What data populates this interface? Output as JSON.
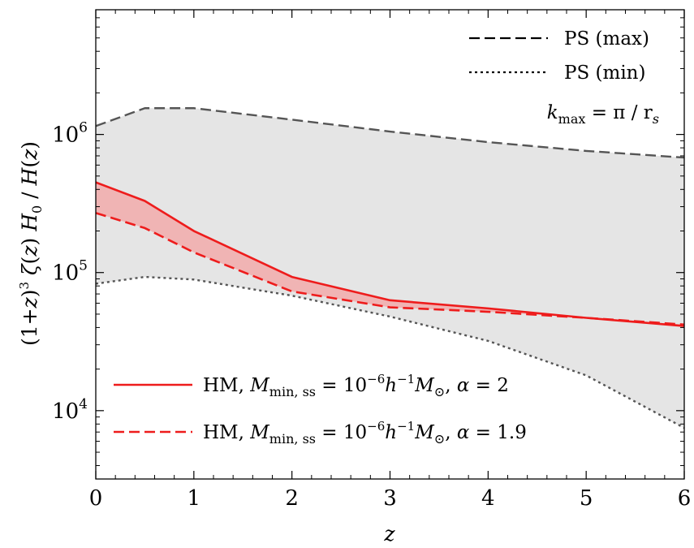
{
  "chart_data": {
    "type": "line",
    "xlabel": "z",
    "ylabel": "(1+z)^3 ζ(z) H_0 / H(z)",
    "xlim": [
      0,
      6
    ],
    "ylim": [
      3200,
      8000000
    ],
    "yscale": "log",
    "x_ticks": [
      "0",
      "1",
      "2",
      "3",
      "4",
      "5",
      "6"
    ],
    "y_ticks": [
      {
        "base": "10",
        "exp": "4",
        "value": 10000
      },
      {
        "base": "10",
        "exp": "5",
        "value": 100000
      },
      {
        "base": "10",
        "exp": "6",
        "value": 1000000
      }
    ],
    "annotation": {
      "lhs": "k",
      "lhs_sub": "max",
      "rhs": "= π / r",
      "rhs_sub": "s"
    },
    "shaded_band": {
      "between": [
        "PS (max)",
        "PS (min)"
      ],
      "color": "#e5e5e5"
    },
    "hm_band": {
      "between": [
        "HM α=2",
        "HM α=1.9"
      ],
      "color": "#f0b4b4"
    },
    "series": [
      {
        "name": "PS (max)",
        "style": "dashed",
        "color": "#555555",
        "x": [
          0,
          0.5,
          1,
          2,
          3,
          4,
          5,
          6
        ],
        "y": [
          1150000,
          1550000,
          1550000,
          1280000,
          1050000,
          880000,
          760000,
          680000
        ]
      },
      {
        "name": "PS (min)",
        "style": "dotted",
        "color": "#555555",
        "x": [
          0,
          0.5,
          1,
          2,
          3,
          4,
          5,
          6
        ],
        "y": [
          83000,
          93000,
          89000,
          68000,
          48000,
          32000,
          18000,
          7500
        ]
      },
      {
        "name": "HM α=2",
        "style": "solid",
        "color": "#ee1c1c",
        "x": [
          0,
          0.5,
          1,
          2,
          3,
          4,
          5,
          6
        ],
        "y": [
          450000,
          330000,
          200000,
          93000,
          63000,
          55000,
          47000,
          41000
        ]
      },
      {
        "name": "HM α=1.9",
        "style": "dashed",
        "color": "#ee1c1c",
        "x": [
          0,
          0.5,
          1,
          2,
          3,
          4,
          5,
          6
        ],
        "y": [
          270000,
          210000,
          140000,
          73000,
          56000,
          52000,
          47000,
          42000
        ]
      }
    ],
    "legend_top": [
      {
        "label": "PS (max)",
        "style": "dashed"
      },
      {
        "label": "PS (min)",
        "style": "dotted"
      }
    ],
    "legend_bottom": [
      {
        "prefix": "HM, ",
        "M": "M",
        "M_sub": "min, ss",
        "eq": " = 10",
        "exp1": "−6",
        "h": "h",
        "exp2": "−1",
        "M2": "M",
        "sun": "⊙",
        "comma": ", ",
        "alpha": "α",
        "aval": " = 2",
        "style": "solid"
      },
      {
        "prefix": "HM, ",
        "M": "M",
        "M_sub": "min, ss",
        "eq": " = 10",
        "exp1": "−6",
        "h": "h",
        "exp2": "−1",
        "M2": "M",
        "sun": "⊙",
        "comma": ", ",
        "alpha": "α",
        "aval": " = 1.9",
        "style": "dashed"
      }
    ]
  }
}
